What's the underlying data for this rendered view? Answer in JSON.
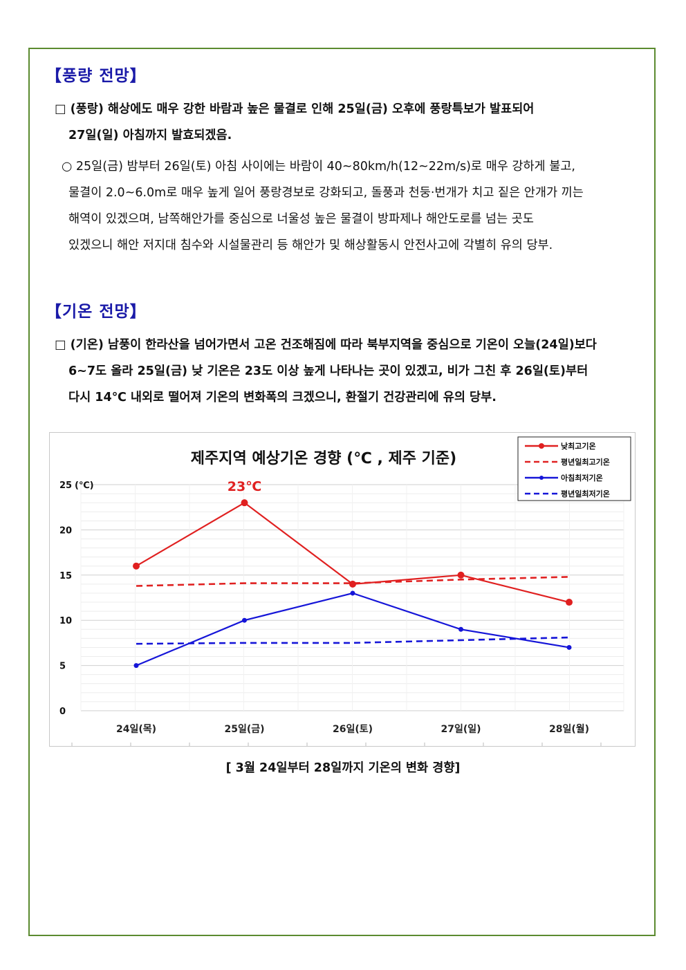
{
  "section1": {
    "heading": "【풍량 전망】",
    "bullet1_lines": [
      "□ (풍랑) 해상에도 매우 강한 바람과 높은 물결로 인해 25일(금) 오후에 풍랑특보가 발표되어",
      "27일(일) 아침까지 발효되겠음."
    ],
    "bullet2_lines": [
      "○ 25일(금) 밤부터 26일(토) 아침 사이에는 바람이 40~80km/h(12~22m/s)로 매우 강하게 불고,",
      "물결이 2.0~6.0m로 매우 높게 일어 풍랑경보로 강화되고, 돌풍과 천둥·번개가 치고 짙은 안개가 끼는",
      "해역이 있겠으며, 남쪽해안가를 중심으로 너울성 높은 물결이 방파제나 해안도로를 넘는 곳도",
      "있겠으니 해안 저지대 침수와 시설물관리 등 해안가 및 해상활동시 안전사고에 각별히 유의 당부."
    ]
  },
  "section2": {
    "heading": "【기온 전망】",
    "bullet1_lines": [
      "□ (기온) 남풍이 한라산을 넘어가면서 고온 건조해짐에 따라  북부지역을 중심으로 기온이 오늘(24일)보다",
      "6~7도 올라 25일(금) 낮 기온은 23도 이상 높게 나타나는 곳이 있겠고, 비가 그친 후 26일(토)부터",
      "다시 14℃ 내외로 떨어져 기온의 변화폭의 크겠으니, 환절기 건강관리에 유의 당부."
    ]
  },
  "chart_data": {
    "type": "line",
    "title": "제주지역 예상기온 경향 (℃ , 제주 기준)",
    "ylabel": "(℃)",
    "categories": [
      "24일(목)",
      "25일(금)",
      "26일(토)",
      "27일(일)",
      "28일(월)"
    ],
    "ylim": [
      0,
      25
    ],
    "yticks": [
      0,
      5,
      10,
      15,
      20,
      25
    ],
    "annotation": "23℃",
    "grid": true,
    "legend_position": "top-right",
    "series": [
      {
        "name": "낮최고기온",
        "values": [
          16,
          23,
          14,
          15,
          12
        ],
        "color": "#e02020",
        "style": "solid",
        "marker": true
      },
      {
        "name": "평년일최고기온",
        "values": [
          13.8,
          14.1,
          14.1,
          14.5,
          14.8
        ],
        "color": "#e02020",
        "style": "dashed",
        "marker": false
      },
      {
        "name": "아침최저기온",
        "values": [
          5,
          10,
          13,
          9,
          7
        ],
        "color": "#1515d8",
        "style": "solid",
        "marker": true
      },
      {
        "name": "평년일최저기온",
        "values": [
          7.4,
          7.5,
          7.5,
          7.8,
          8.1
        ],
        "color": "#1515d8",
        "style": "dashed",
        "marker": false
      }
    ]
  },
  "caption": "[ 3월 24일부터 28일까지 기온의 변화 경향]",
  "colors": {
    "frame": "#5b8a2f",
    "heading": "#1a1aa8"
  }
}
